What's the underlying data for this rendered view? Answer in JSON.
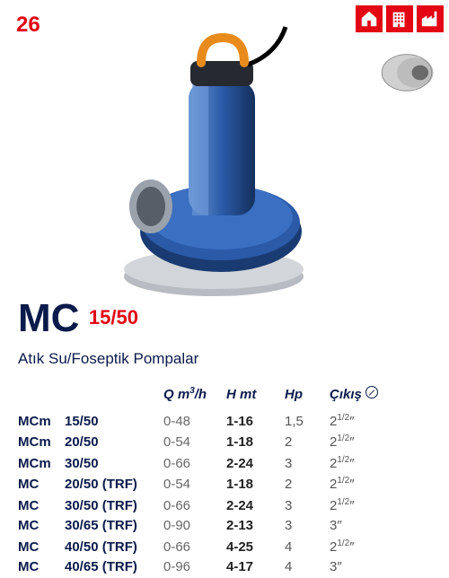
{
  "page_number": "26",
  "accent_color": "#e30613",
  "navy_color": "#0a1a4a",
  "icons": [
    {
      "name": "residential-icon"
    },
    {
      "name": "commercial-icon"
    },
    {
      "name": "industrial-icon"
    }
  ],
  "series": {
    "name": "MC",
    "suffix": "15/50"
  },
  "category": "Atık Su/Foseptik Pompalar",
  "headers": {
    "flow": "Q m³/h",
    "head": "H mt",
    "power": "Hp",
    "outlet": "Çıkış"
  },
  "rows": [
    {
      "prefix": "MCm",
      "model": "15/50",
      "q": "0-48",
      "h": "1-16",
      "hp": "1,5",
      "out": "2½″"
    },
    {
      "prefix": "MCm",
      "model": "20/50",
      "q": "0-54",
      "h": "1-18",
      "hp": "2",
      "out": "2½″"
    },
    {
      "prefix": "MCm",
      "model": "30/50",
      "q": "0-66",
      "h": "2-24",
      "hp": "3",
      "out": "2½″"
    },
    {
      "prefix": "MC",
      "model": "20/50 (TRF)",
      "q": "0-54",
      "h": "1-18",
      "hp": "2",
      "out": "2½″"
    },
    {
      "prefix": "MC",
      "model": "30/50 (TRF)",
      "q": "0-66",
      "h": "2-24",
      "hp": "3",
      "out": "2½″"
    },
    {
      "prefix": "MC",
      "model": "30/65 (TRF)",
      "q": "0-90",
      "h": "2-13",
      "hp": "3",
      "out": "3″"
    },
    {
      "prefix": "MC",
      "model": "40/50 (TRF)",
      "q": "0-66",
      "h": "4-25",
      "hp": "4",
      "out": "2½″"
    },
    {
      "prefix": "MC",
      "model": "40/65 (TRF)",
      "q": "0-96",
      "h": "4-17",
      "hp": "4",
      "out": "3″"
    }
  ]
}
